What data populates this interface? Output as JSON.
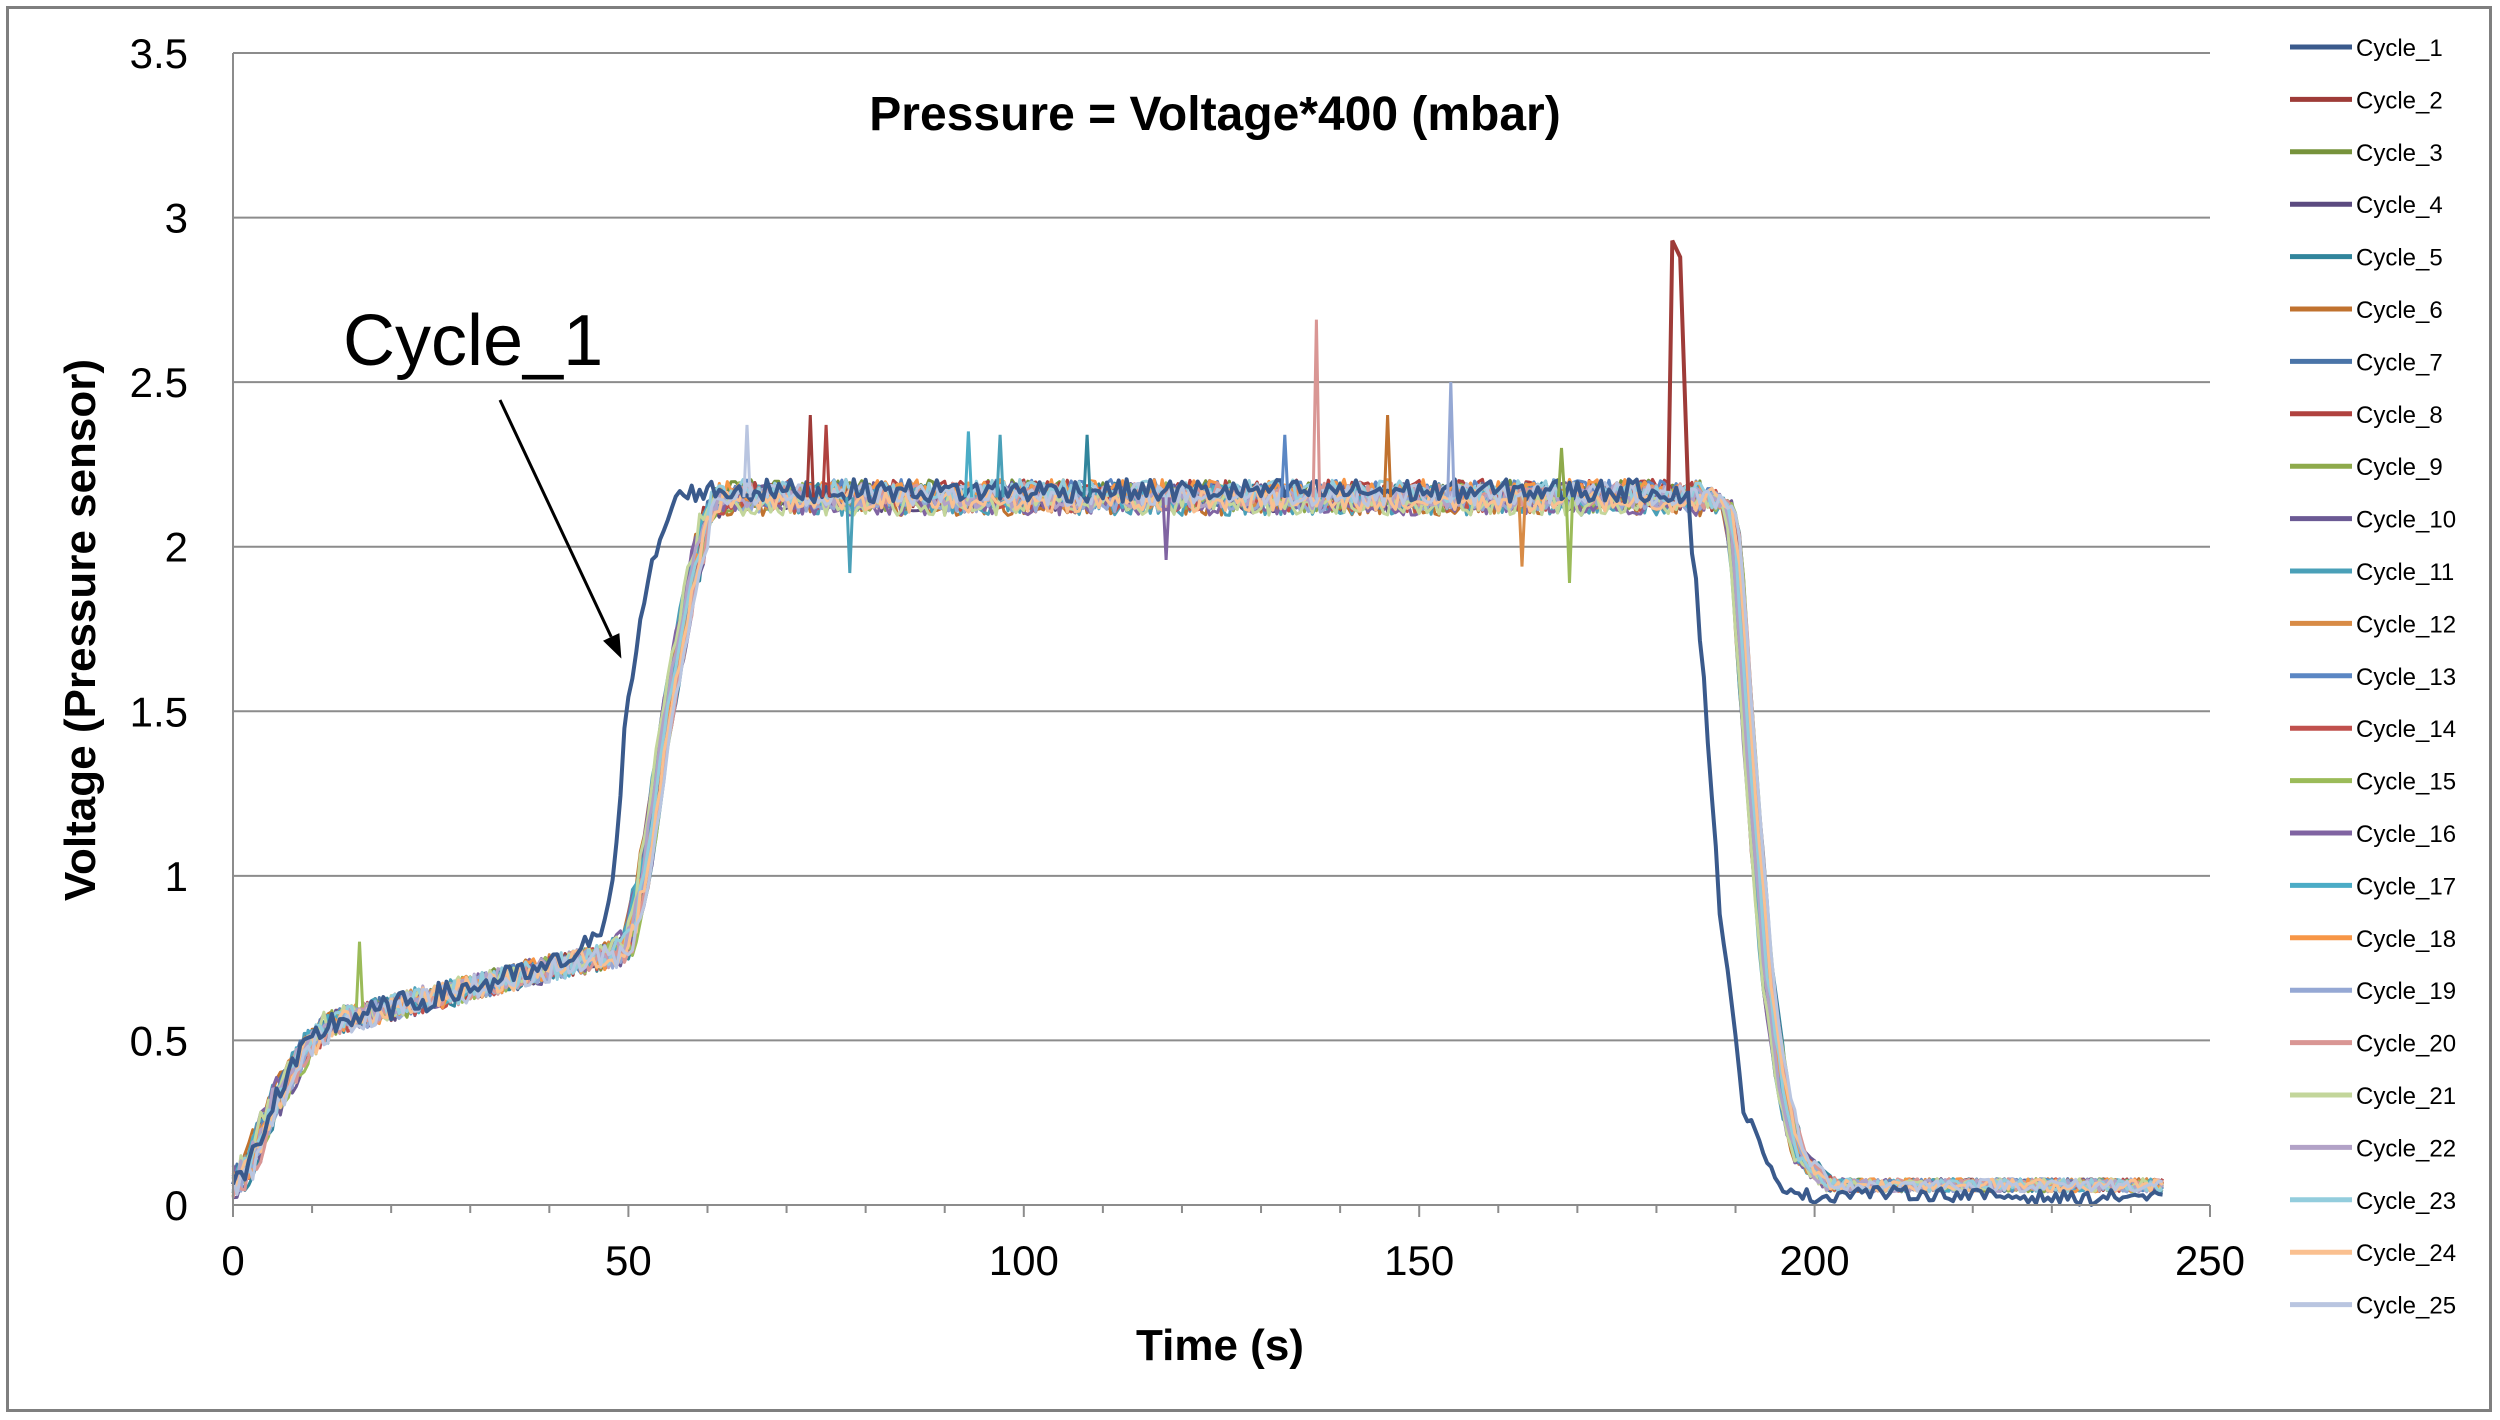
{
  "chart_data": {
    "type": "line",
    "title": "Pressure = Voltage*400 (mbar)",
    "xlabel": "Time (s)",
    "ylabel": "Voltage (Pressure sensor)",
    "xlim": [
      0,
      250
    ],
    "ylim": [
      0,
      3.5
    ],
    "x_ticks": [
      "0",
      "50",
      "100",
      "150",
      "200",
      "250"
    ],
    "y_ticks": [
      "0",
      "0.5",
      "1",
      "1.5",
      "2",
      "2.5",
      "3",
      "3.5"
    ],
    "grid": "horizontal",
    "legend_position": "right",
    "annotation": {
      "text": "Cycle_1",
      "points_to": [
        50,
        1.66
      ]
    },
    "profile": {
      "cycle_1": {
        "x": [
          0,
          2,
          5,
          9,
          12,
          20,
          30,
          40,
          46,
          48,
          50,
          53,
          56,
          58,
          120,
          170,
          182,
          184,
          186,
          188,
          191,
          195,
          200,
          205,
          235,
          240,
          244
        ],
        "y": [
          0.06,
          0.12,
          0.3,
          0.47,
          0.55,
          0.6,
          0.66,
          0.72,
          0.8,
          1.0,
          1.55,
          1.95,
          2.15,
          2.17,
          2.17,
          2.17,
          2.17,
          2.15,
          1.6,
          0.9,
          0.3,
          0.07,
          0.02,
          0.04,
          0.02,
          0.03,
          0.02
        ]
      },
      "others": {
        "x": [
          0,
          2,
          5,
          9,
          12,
          20,
          30,
          40,
          48,
          50,
          52,
          55,
          58,
          60,
          62,
          120,
          170,
          186,
          189,
          190,
          192,
          194,
          196,
          198,
          202,
          205,
          244
        ],
        "y": [
          0.06,
          0.12,
          0.3,
          0.47,
          0.55,
          0.6,
          0.66,
          0.72,
          0.76,
          0.8,
          1.0,
          1.5,
          1.9,
          2.1,
          2.15,
          2.15,
          2.15,
          2.15,
          2.13,
          2.0,
          1.3,
          0.7,
          0.35,
          0.15,
          0.06,
          0.06,
          0.06
        ]
      }
    },
    "spikes": [
      {
        "series": "Cycle_2",
        "x": 73,
        "y": 2.4
      },
      {
        "series": "Cycle_8",
        "x": 75,
        "y": 2.37
      },
      {
        "series": "Cycle_20",
        "x": 137,
        "y": 2.69
      },
      {
        "series": "Cycle_6",
        "x": 146,
        "y": 2.4
      },
      {
        "series": "Cycle_19",
        "x": 154,
        "y": 2.5
      },
      {
        "series": "Cycle_25",
        "x": 65,
        "y": 2.37
      },
      {
        "series": "Cycle_17",
        "x": 93,
        "y": 2.35
      },
      {
        "series": "Cycle_11",
        "x": 97,
        "y": 2.34
      },
      {
        "series": "Cycle_5",
        "x": 108,
        "y": 2.34
      },
      {
        "series": "Cycle_13",
        "x": 133,
        "y": 2.34
      },
      {
        "series": "Cycle_15",
        "x": 16,
        "y": 0.8
      },
      {
        "series": "Cycle_9",
        "x": 168,
        "y": 2.3
      },
      {
        "series": "Cycle_11",
        "x": 78,
        "y": 1.92
      },
      {
        "series": "Cycle_15",
        "x": 169,
        "y": 1.89
      },
      {
        "series": "Cycle_12",
        "x": 163,
        "y": 1.94
      },
      {
        "series": "Cycle_16",
        "x": 118,
        "y": 1.96
      }
    ],
    "big_spike": {
      "series": "Cycle_2",
      "x": [
        181.5,
        182,
        183,
        184
      ],
      "y": [
        2.17,
        2.93,
        2.88,
        2.17
      ]
    },
    "series": [
      {
        "name": "Cycle_1",
        "color": "#3a5a8c"
      },
      {
        "name": "Cycle_2",
        "color": "#9e3b38"
      },
      {
        "name": "Cycle_3",
        "color": "#77933c"
      },
      {
        "name": "Cycle_4",
        "color": "#5b4a80"
      },
      {
        "name": "Cycle_5",
        "color": "#31859c"
      },
      {
        "name": "Cycle_6",
        "color": "#c0722f"
      },
      {
        "name": "Cycle_7",
        "color": "#4a74a8"
      },
      {
        "name": "Cycle_8",
        "color": "#b0423f"
      },
      {
        "name": "Cycle_9",
        "color": "#8eaa4b"
      },
      {
        "name": "Cycle_10",
        "color": "#6b5a94"
      },
      {
        "name": "Cycle_11",
        "color": "#4aa0b8"
      },
      {
        "name": "Cycle_12",
        "color": "#d88b46"
      },
      {
        "name": "Cycle_13",
        "color": "#5b87c4"
      },
      {
        "name": "Cycle_14",
        "color": "#c0504d"
      },
      {
        "name": "Cycle_15",
        "color": "#9bbb59"
      },
      {
        "name": "Cycle_16",
        "color": "#8064a2"
      },
      {
        "name": "Cycle_17",
        "color": "#4bacc6"
      },
      {
        "name": "Cycle_18",
        "color": "#f79646"
      },
      {
        "name": "Cycle_19",
        "color": "#95a8d4"
      },
      {
        "name": "Cycle_20",
        "color": "#d99694"
      },
      {
        "name": "Cycle_21",
        "color": "#c3d69b"
      },
      {
        "name": "Cycle_22",
        "color": "#b2a2c7"
      },
      {
        "name": "Cycle_23",
        "color": "#93cddd"
      },
      {
        "name": "Cycle_24",
        "color": "#fac090"
      },
      {
        "name": "Cycle_25",
        "color": "#b9c5e0"
      }
    ]
  }
}
